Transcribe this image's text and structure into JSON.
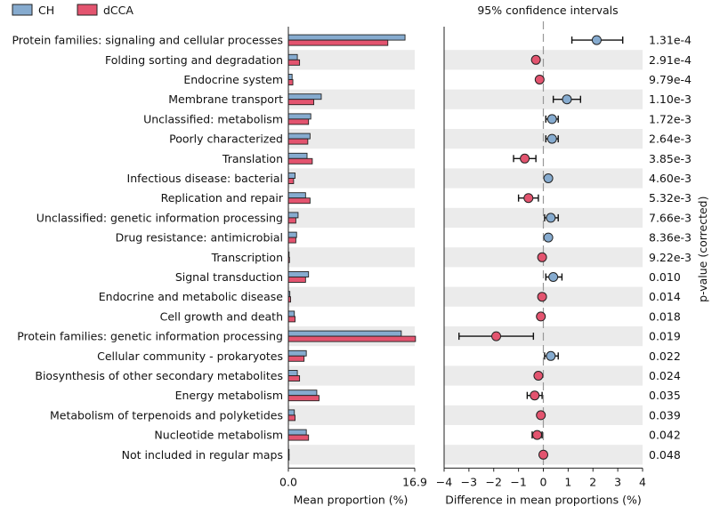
{
  "colors": {
    "ch": "#86abcf",
    "dcca": "#e3546f",
    "row_shade": "#ebebeb",
    "zero_line": "#999999"
  },
  "legend": [
    {
      "key": "ch",
      "label": "CH"
    },
    {
      "key": "dcca",
      "label": "dCCA"
    }
  ],
  "chart_data": [
    {
      "type": "bar",
      "orientation": "horizontal",
      "categories": [
        "Protein families: signaling and cellular processes",
        "Folding sorting and degradation",
        "Endocrine system",
        "Membrane transport",
        "Unclassified: metabolism",
        "Poorly characterized",
        "Translation",
        "Infectious disease: bacterial",
        "Replication and repair",
        "Unclassified: genetic information processing",
        "Drug resistance: antimicrobial",
        "Transcription",
        "Signal transduction",
        "Endocrine and metabolic disease",
        "Cell growth and death",
        "Protein families: genetic information processing",
        "Cellular community - prokaryotes",
        "Biosynthesis of other secondary metabolites",
        "Energy metabolism",
        "Metabolism of terpenoids and polyketides",
        "Nucleotide metabolism",
        "Not included in regular maps"
      ],
      "series": [
        {
          "name": "CH",
          "color_key": "ch",
          "values": [
            15.6,
            1.2,
            0.5,
            4.4,
            3.0,
            2.9,
            2.5,
            0.9,
            2.3,
            1.3,
            1.1,
            0.1,
            2.7,
            0.2,
            0.8,
            15.1,
            2.4,
            1.2,
            3.8,
            0.8,
            2.4,
            0.05
          ]
        },
        {
          "name": "dCCA",
          "color_key": "dcca",
          "values": [
            13.3,
            1.5,
            0.6,
            3.4,
            2.7,
            2.6,
            3.2,
            0.7,
            2.9,
            1.0,
            1.0,
            0.15,
            2.3,
            0.3,
            0.9,
            17.0,
            2.1,
            1.5,
            4.1,
            0.9,
            2.7,
            0.1
          ]
        }
      ],
      "xlabel": "Mean proportion (%)",
      "xlim": [
        0.0,
        16.9
      ],
      "ticks": [
        "0.0",
        "16.9"
      ]
    },
    {
      "type": "scatter",
      "title": "95% confidence intervals",
      "xlabel": "Difference in mean proportions (%)",
      "xlim": [
        -4,
        4
      ],
      "ticks": [
        -4,
        -3,
        -2,
        -1,
        0,
        1,
        2,
        3,
        4
      ],
      "points": [
        {
          "diff": 2.15,
          "low": 1.15,
          "high": 3.2,
          "color_key": "ch"
        },
        {
          "diff": -0.3,
          "low": -0.3,
          "high": -0.3,
          "color_key": "dcca"
        },
        {
          "diff": -0.15,
          "low": -0.15,
          "high": -0.15,
          "color_key": "dcca"
        },
        {
          "diff": 0.95,
          "low": 0.4,
          "high": 1.5,
          "color_key": "ch"
        },
        {
          "diff": 0.35,
          "low": 0.1,
          "high": 0.6,
          "color_key": "ch"
        },
        {
          "diff": 0.35,
          "low": 0.1,
          "high": 0.6,
          "color_key": "ch"
        },
        {
          "diff": -0.75,
          "low": -1.2,
          "high": -0.3,
          "color_key": "dcca"
        },
        {
          "diff": 0.2,
          "low": 0.2,
          "high": 0.2,
          "color_key": "ch"
        },
        {
          "diff": -0.6,
          "low": -1.0,
          "high": -0.2,
          "color_key": "dcca"
        },
        {
          "diff": 0.3,
          "low": 0.05,
          "high": 0.6,
          "color_key": "ch"
        },
        {
          "diff": 0.2,
          "low": 0.2,
          "high": 0.2,
          "color_key": "ch"
        },
        {
          "diff": -0.05,
          "low": -0.05,
          "high": -0.05,
          "color_key": "dcca"
        },
        {
          "diff": 0.4,
          "low": 0.1,
          "high": 0.75,
          "color_key": "ch"
        },
        {
          "diff": -0.05,
          "low": -0.05,
          "high": -0.05,
          "color_key": "dcca"
        },
        {
          "diff": -0.1,
          "low": -0.1,
          "high": -0.1,
          "color_key": "dcca"
        },
        {
          "diff": -1.9,
          "low": -3.4,
          "high": -0.4,
          "color_key": "dcca"
        },
        {
          "diff": 0.3,
          "low": 0.05,
          "high": 0.6,
          "color_key": "ch"
        },
        {
          "diff": -0.2,
          "low": -0.2,
          "high": -0.2,
          "color_key": "dcca"
        },
        {
          "diff": -0.35,
          "low": -0.65,
          "high": -0.05,
          "color_key": "dcca"
        },
        {
          "diff": -0.1,
          "low": -0.1,
          "high": -0.1,
          "color_key": "dcca"
        },
        {
          "diff": -0.25,
          "low": -0.45,
          "high": -0.05,
          "color_key": "dcca"
        },
        {
          "diff": 0.0,
          "low": 0.0,
          "high": 0.0,
          "color_key": "dcca"
        }
      ],
      "p_values": [
        "1.31e-4",
        "2.91e-4",
        "9.79e-4",
        "1.10e-3",
        "1.72e-3",
        "2.64e-3",
        "3.85e-3",
        "4.60e-3",
        "5.32e-3",
        "7.66e-3",
        "8.36e-3",
        "9.22e-3",
        "0.010",
        "0.014",
        "0.018",
        "0.019",
        "0.022",
        "0.024",
        "0.035",
        "0.039",
        "0.042",
        "0.048"
      ],
      "p_value_label": "p-value (corrected)"
    }
  ]
}
